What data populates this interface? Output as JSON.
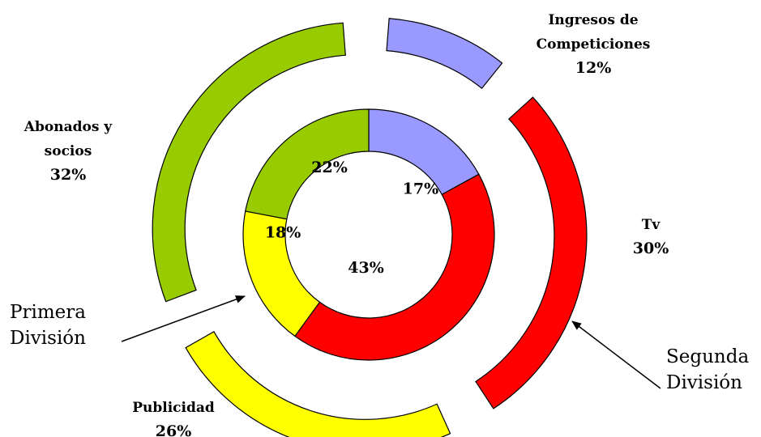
{
  "chart_data": {
    "type": "pie",
    "categories": [
      "Ingresos de Competiciones",
      "Tv",
      "Publicidad",
      "Abonados y socios"
    ],
    "series": [
      {
        "name": "Primera División",
        "values": [
          17,
          43,
          18,
          22
        ],
        "labels": [
          "17%",
          "43%",
          "18%",
          "22%"
        ]
      },
      {
        "name": "Segunda División",
        "values": [
          12,
          30,
          26,
          32
        ],
        "labels": [
          "12%",
          "30%",
          "26%",
          "32%"
        ]
      }
    ],
    "outer_labels": [
      {
        "lines": [
          "Ingresos de",
          "Competiciones"
        ],
        "pct": "12%"
      },
      {
        "lines": [
          "Tv"
        ],
        "pct": "30%"
      },
      {
        "lines": [
          "Publicidad"
        ],
        "pct": "26%"
      },
      {
        "lines": [
          "Abonados y",
          "socios"
        ],
        "pct": "32%"
      }
    ],
    "callouts": [
      {
        "lines": [
          "Primera",
          "División"
        ]
      },
      {
        "lines": [
          "Segunda",
          "División"
        ]
      }
    ],
    "colors": [
      "#9999ff",
      "#ff0000",
      "#ffff00",
      "#99cc00"
    ]
  }
}
